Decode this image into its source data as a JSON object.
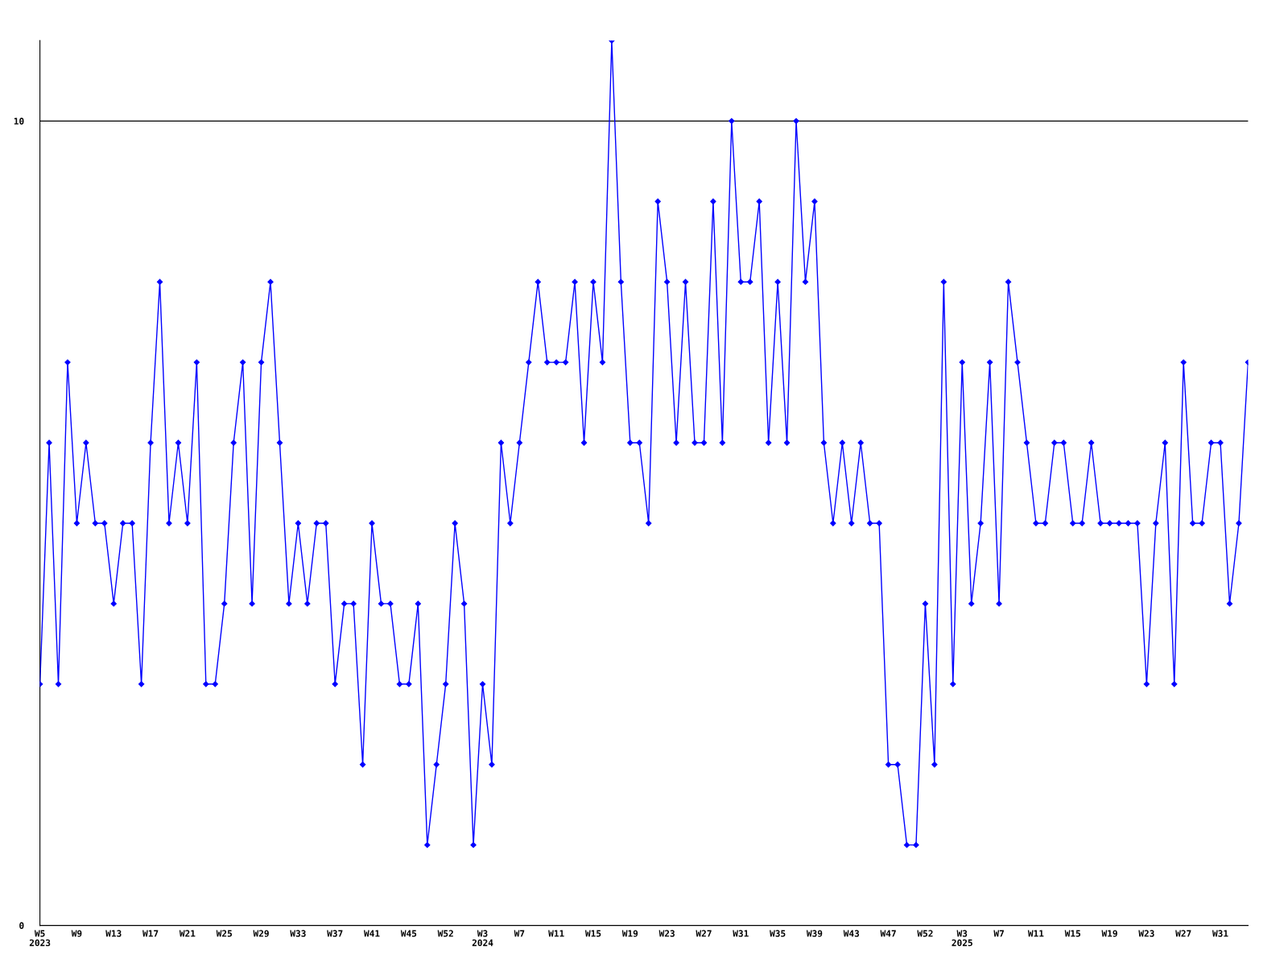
{
  "chart_data": {
    "type": "line",
    "categories": [
      "W5\n2023",
      null,
      null,
      null,
      "W9",
      null,
      null,
      null,
      "W13",
      null,
      null,
      null,
      "W17",
      null,
      null,
      null,
      "W21",
      null,
      null,
      null,
      "W25",
      null,
      null,
      null,
      "W29",
      null,
      null,
      null,
      "W33",
      null,
      null,
      null,
      "W37",
      null,
      null,
      null,
      "W41",
      null,
      null,
      null,
      "W45",
      null,
      null,
      null,
      "W52",
      null,
      null,
      null,
      "W3\n2024",
      null,
      null,
      null,
      "W7",
      null,
      null,
      null,
      "W11",
      null,
      null,
      null,
      "W15",
      null,
      null,
      null,
      "W19",
      null,
      null,
      null,
      "W23",
      null,
      null,
      null,
      "W27",
      null,
      null,
      null,
      "W31",
      null,
      null,
      null,
      "W35",
      null,
      null,
      null,
      "W39",
      null,
      null,
      null,
      "W43",
      null,
      null,
      null,
      "W47",
      null,
      null,
      null,
      "W52",
      null,
      null,
      null,
      "W3\n2025",
      null,
      null,
      null,
      "W7",
      null,
      null,
      null,
      "W11",
      null,
      null,
      null,
      "W15",
      null,
      null,
      null,
      "W19",
      null,
      null,
      null,
      "W23",
      null,
      null,
      null,
      "W27",
      null,
      null,
      null,
      "W31",
      null,
      null,
      null
    ],
    "series": [
      {
        "color": "#0000ff",
        "values": [
          3,
          6,
          3,
          7,
          5,
          6,
          5,
          5,
          4,
          5,
          5,
          3,
          6,
          8,
          5,
          6,
          5,
          7,
          3,
          3,
          4,
          6,
          7,
          4,
          7,
          8,
          6,
          4,
          5,
          4,
          5,
          5,
          3,
          4,
          4,
          2,
          5,
          4,
          4,
          3,
          3,
          4,
          1,
          2,
          3,
          5,
          4,
          1,
          3,
          2,
          6,
          5,
          6,
          7,
          8,
          7,
          7,
          7,
          8,
          6,
          8,
          7,
          11,
          8,
          6,
          6,
          5,
          9,
          8,
          6,
          8,
          6,
          6,
          9,
          6,
          10,
          8,
          8,
          9,
          6,
          8,
          6,
          10,
          8,
          9,
          6,
          5,
          6,
          5,
          6,
          5,
          5,
          2,
          2,
          1,
          1,
          4,
          2,
          8,
          3,
          7,
          4,
          5,
          7,
          4,
          8,
          7,
          6,
          5,
          5,
          6,
          6,
          5,
          5,
          6,
          5,
          5,
          5,
          5,
          5,
          3,
          5,
          6,
          3,
          7,
          5,
          5,
          6,
          6,
          4,
          5,
          7
        ]
      }
    ],
    "ylim": [
      0,
      11
    ],
    "yticks": [
      0,
      10
    ],
    "grid": "y",
    "marker": "diamond",
    "line_style": "solid"
  }
}
